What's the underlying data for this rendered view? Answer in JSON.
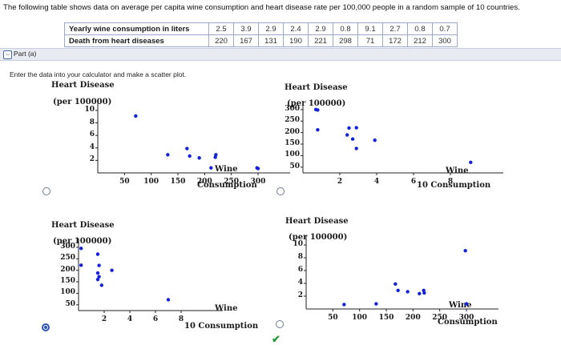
{
  "question": {
    "intro": "The following table shows data on average per capita wine consumption and heart disease rate per 100,000 people in a random sample of 10 countries.",
    "table": {
      "row1_label": "Yearly wine consumption in liters",
      "row1_values": [
        "2.5",
        "3.9",
        "2.9",
        "2.4",
        "2.9",
        "0.8",
        "9.1",
        "2.7",
        "0.8",
        "0.7"
      ],
      "row2_label": "Death from heart diseases",
      "row2_values": [
        "220",
        "167",
        "131",
        "190",
        "221",
        "298",
        "71",
        "172",
        "212",
        "300"
      ]
    },
    "part_label": "Part (a)",
    "part_toggle": "−",
    "instruction": "Enter the data into your calculator and make a scatter plot."
  },
  "options": [
    {
      "id": "A",
      "selected": false,
      "title": "Heart Disease",
      "subtitle": "(per 100000)",
      "x_title": "Wine",
      "x_title2": "Consumption",
      "y_ticks": [
        "10",
        "8",
        "6",
        "4",
        "2"
      ],
      "x_ticks": [
        "50",
        "100",
        "150",
        "200",
        "250",
        "300"
      ],
      "chart_data": {
        "type": "scatter",
        "xlabel": "Consumption",
        "ylabel": "Wine",
        "x_ticks": [
          50,
          100,
          150,
          200,
          250,
          300
        ],
        "y_ticks": [
          2,
          4,
          6,
          8,
          10
        ],
        "points": [
          [
            71,
            9.1
          ],
          [
            131,
            2.9
          ],
          [
            167,
            3.9
          ],
          [
            172,
            2.7
          ],
          [
            190,
            2.4
          ],
          [
            212,
            0.8
          ],
          [
            220,
            2.5
          ],
          [
            221,
            2.9
          ],
          [
            298,
            0.8
          ],
          [
            300,
            0.7
          ]
        ]
      }
    },
    {
      "id": "B",
      "selected": false,
      "title": "Heart Disease",
      "subtitle": "(per 100000)",
      "x_title": "Wine",
      "x_title2": "10 Consumption",
      "y_ticks": [
        "300",
        "250",
        "200",
        "150",
        "100",
        "50"
      ],
      "x_ticks": [
        "2",
        "4",
        "6",
        "8"
      ],
      "chart_data": {
        "type": "scatter",
        "xlabel": "Wine Consumption",
        "ylabel": "Heart Disease (per 100000)",
        "x_ticks": [
          2,
          4,
          6,
          8
        ],
        "y_ticks": [
          50,
          100,
          150,
          200,
          250,
          300
        ],
        "points": [
          [
            0.7,
            300
          ],
          [
            0.8,
            298
          ],
          [
            0.8,
            212
          ],
          [
            2.4,
            190
          ],
          [
            2.5,
            220
          ],
          [
            2.7,
            172
          ],
          [
            2.9,
            131
          ],
          [
            2.9,
            221
          ],
          [
            3.9,
            167
          ],
          [
            9.1,
            71
          ]
        ]
      }
    },
    {
      "id": "C",
      "selected": true,
      "title": "Heart Disease",
      "subtitle": "(per 100000)",
      "x_title": "Wine",
      "x_title2": "10 Consumption",
      "y_ticks": [
        "300",
        "250",
        "200",
        "150",
        "100",
        "50"
      ],
      "x_ticks": [
        "2",
        "4",
        "6",
        "8"
      ],
      "chart_data": {
        "type": "scatter",
        "xlabel": "Wine Consumption",
        "ylabel": "Heart Disease (per 100000)",
        "x_ticks": [
          2,
          4,
          6,
          8
        ],
        "y_ticks": [
          50,
          100,
          150,
          200,
          250,
          300
        ],
        "points": [
          [
            0.2,
            295
          ],
          [
            0.2,
            222
          ],
          [
            1.5,
            270
          ],
          [
            1.6,
            221
          ],
          [
            1.5,
            188
          ],
          [
            1.6,
            172
          ],
          [
            1.5,
            160
          ],
          [
            2.6,
            200
          ],
          [
            1.8,
            135
          ],
          [
            7.0,
            72
          ]
        ]
      }
    },
    {
      "id": "D",
      "selected": false,
      "check_mark": "✔",
      "title": "Heart Disease",
      "subtitle": "(per 100000)",
      "x_title": "Wine",
      "x_title2": "Consumption",
      "y_ticks": [
        "10",
        "8",
        "6",
        "4",
        "2"
      ],
      "x_ticks": [
        "50",
        "100",
        "150",
        "200",
        "250",
        "300"
      ],
      "chart_data": {
        "type": "scatter",
        "xlabel": "Consumption",
        "ylabel": "Wine",
        "x_ticks": [
          50,
          100,
          150,
          200,
          250,
          300
        ],
        "y_ticks": [
          2,
          4,
          6,
          8,
          10
        ],
        "points": [
          [
            298,
            9.1
          ],
          [
            220,
            2.9
          ],
          [
            167,
            3.9
          ],
          [
            190,
            2.7
          ],
          [
            212,
            2.4
          ],
          [
            131,
            0.8
          ],
          [
            221,
            2.5
          ],
          [
            172,
            2.9
          ],
          [
            300,
            0.8
          ],
          [
            71,
            0.7
          ]
        ]
      }
    }
  ]
}
